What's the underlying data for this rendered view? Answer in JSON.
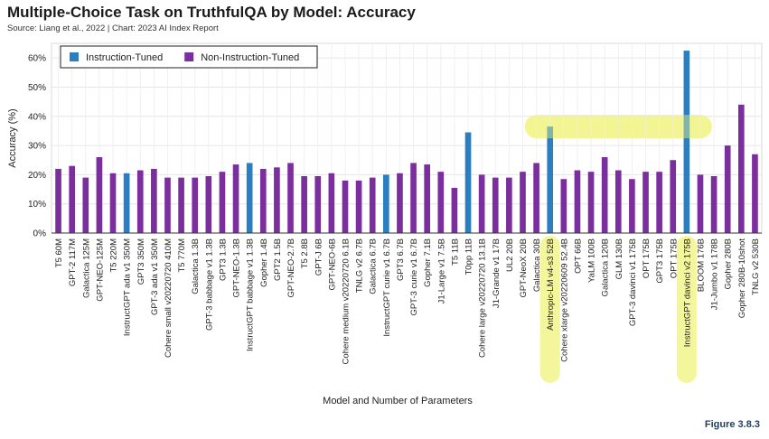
{
  "header": {
    "title": "Multiple-Choice Task on TruthfulQA by Model: Accuracy",
    "source": "Source: Liang et al., 2022 | Chart: 2023 AI Index Report"
  },
  "figure_label": "Figure 3.8.3",
  "colors": {
    "instruction_tuned": "#2b7fc1",
    "non_instruction_tuned": "#7b2f9e",
    "highlight": "#f2f58a"
  },
  "chart_data": {
    "type": "bar",
    "xlabel": "Model and Number of Parameters",
    "ylabel": "Accuracy (%)",
    "ylim": [
      0,
      65
    ],
    "yticks": [
      0,
      10,
      20,
      30,
      40,
      50,
      60
    ],
    "ytick_labels": [
      "0%",
      "10%",
      "20%",
      "30%",
      "40%",
      "50%",
      "60%"
    ],
    "grid": true,
    "legend_position": "top-left",
    "legend": [
      {
        "label": "Instruction-Tuned",
        "group": "instruction"
      },
      {
        "label": "Non-Instruction-Tuned",
        "group": "non_instruction"
      }
    ],
    "categories": [
      "T5 60M",
      "GPT-2 117M",
      "Galactica 125M",
      "GPT-NEO-125M",
      "T5 220M",
      "InstructGPT ada v1 350M",
      "GPT3 350M",
      "GPT-3 ada v1 350M",
      "Cohere small v20220720 410M",
      "T5 770M",
      "Galactica 1.3B",
      "GPT-3 babbage v1 1.3B",
      "GPT3 1.3B",
      "GPT-NEO-1.3B",
      "InstructGPT babbage v1 1.3B",
      "Gopher 1.4B",
      "GPT2 1.5B",
      "GPT-NEO-2.7B",
      "T5 2.8B",
      "GPT-J 6B",
      "GPT-NEO-6B",
      "Cohere medium v20220720 6.1B",
      "TNLG v2 6.7B",
      "Galactica 6.7B",
      "InstructGPT curie v1 6.7B",
      "GPT3 6.7B",
      "GPT-3 curie v1 6.7B",
      "Gopher 7.1B",
      "J1-Large v1 7.5B",
      "T5 11B",
      "T0pp 11B",
      "Cohere large v20220720 13.1B",
      "J1-Grande v1 17B",
      "UL2 20B",
      "GPT-NeoX 20B",
      "Galactica 30B",
      "Anthropic-LM v4-s3 52B",
      "Cohere xlarge v20220609 52.4B",
      "OPT 66B",
      "YaLM 100B",
      "Galactica 120B",
      "GLM 130B",
      "GPT-3 davinci v1 175B",
      "OPT 175B",
      "GPT3 175B",
      "OPT 175B",
      "InstructGPT davinci v2 175B",
      "BLOOM 176B",
      "J1-Jumbo v1 178B",
      "Gopher 280B",
      "Gopher 280B-10shot",
      "TNLG v2 530B"
    ],
    "values": [
      22,
      23,
      19,
      26,
      20.5,
      20.5,
      21.5,
      22,
      19,
      19,
      19,
      19.5,
      21,
      23.5,
      24,
      22,
      22.5,
      24,
      19.5,
      19.5,
      20.5,
      18,
      18,
      19,
      20,
      20.5,
      24,
      23.5,
      21,
      15.5,
      34.5,
      20,
      19,
      19,
      21,
      24,
      36.5,
      18.5,
      21.5,
      21,
      26,
      21.5,
      18.5,
      21,
      21,
      25,
      62.5,
      20,
      19.5,
      30,
      44,
      27
    ],
    "groups": [
      "non_instruction",
      "non_instruction",
      "non_instruction",
      "non_instruction",
      "non_instruction",
      "instruction",
      "non_instruction",
      "non_instruction",
      "non_instruction",
      "non_instruction",
      "non_instruction",
      "non_instruction",
      "non_instruction",
      "non_instruction",
      "instruction",
      "non_instruction",
      "non_instruction",
      "non_instruction",
      "non_instruction",
      "non_instruction",
      "non_instruction",
      "non_instruction",
      "non_instruction",
      "non_instruction",
      "instruction",
      "non_instruction",
      "non_instruction",
      "non_instruction",
      "non_instruction",
      "non_instruction",
      "instruction",
      "non_instruction",
      "non_instruction",
      "non_instruction",
      "non_instruction",
      "non_instruction",
      "instruction",
      "non_instruction",
      "non_instruction",
      "non_instruction",
      "non_instruction",
      "non_instruction",
      "non_instruction",
      "non_instruction",
      "non_instruction",
      "non_instruction",
      "instruction",
      "non_instruction",
      "non_instruction",
      "non_instruction",
      "non_instruction",
      "non_instruction"
    ],
    "highlighted_categories": [
      "Anthropic-LM v4-s3 52B",
      "InstructGPT davinci v2 175B"
    ],
    "highlight_band_value": 36.5
  }
}
